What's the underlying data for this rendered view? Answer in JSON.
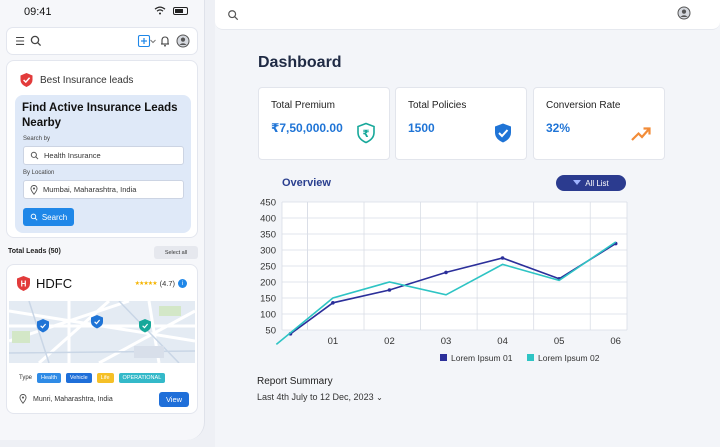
{
  "phone": {
    "time": "09:41",
    "brand": "Best Insurance leads",
    "find_title": "Find Active Insurance Leads Nearby",
    "search_by_label": "Search by",
    "search_value": "Health Insurance",
    "by_location_label": "By Location",
    "location_value": "Mumbai, Maharashtra, India",
    "search_button": "Search",
    "total_leads": "Total Leads (50)",
    "select_all": "Select all",
    "lead": {
      "name": "HDFC",
      "stars": "★★★★★",
      "rating": "(4.7)",
      "type_label": "Type",
      "chips": [
        "Health",
        "Vehicle",
        "Life",
        "OPERATIONAL"
      ],
      "location": "Munri, Maharashtra, India",
      "view_button": "View"
    }
  },
  "dashboard": {
    "title": "Dashboard",
    "kpis": [
      {
        "label": "Total Premium",
        "value": "₹7,50,000.00",
        "icon": "rupee-shield-icon"
      },
      {
        "label": "Total Policies",
        "value": "1500",
        "icon": "shield-check-icon"
      },
      {
        "label": "Conversion Rate",
        "value": "32%",
        "icon": "trend-up-icon"
      }
    ],
    "overview_title": "Overview",
    "filter_button": "All List",
    "report_title": "Report Summary",
    "report_range": "Last 4th July to 12 Dec, 2023"
  },
  "colors": {
    "primary": "#1f74d6",
    "series1": "#2b2f9a",
    "series2": "#2ec4c4",
    "chip_health": "#2f8be6",
    "chip_vehicle": "#1f6fd9",
    "chip_life": "#f5c027",
    "chip_operational": "#34b9c9"
  },
  "chart_data": {
    "type": "line",
    "x": [
      "01",
      "02",
      "03",
      "04",
      "05",
      "06"
    ],
    "x_positions": [
      0,
      1,
      2,
      3,
      4,
      5
    ],
    "ylim": [
      50,
      450
    ],
    "yticks": [
      450,
      400,
      350,
      300,
      250,
      200,
      150,
      100,
      50
    ],
    "grid": true,
    "legend_position": "bottom-right",
    "series": [
      {
        "name": "Lorem Ipsum 01",
        "x": [
          -0.75,
          0,
          1,
          2,
          3,
          4,
          5
        ],
        "values": [
          38,
          135,
          175,
          230,
          275,
          210,
          320
        ]
      },
      {
        "name": "Lorem Ipsum 02",
        "x": [
          -1,
          0,
          1,
          2,
          3,
          4,
          5
        ],
        "values": [
          5,
          150,
          200,
          160,
          255,
          205,
          325
        ]
      }
    ]
  }
}
